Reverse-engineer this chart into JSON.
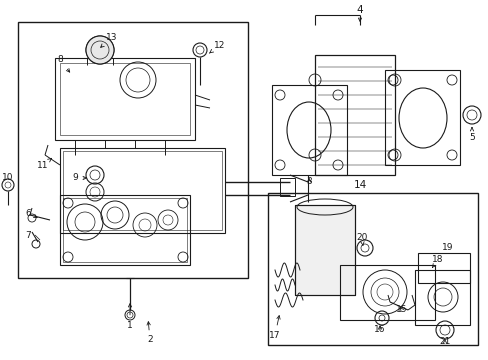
{
  "bg_color": "#ffffff",
  "line_color": "#1a1a1a",
  "figsize": [
    4.89,
    3.6
  ],
  "dpi": 100,
  "lw_main": 0.7,
  "lw_thin": 0.4,
  "fontsize": 6.5
}
